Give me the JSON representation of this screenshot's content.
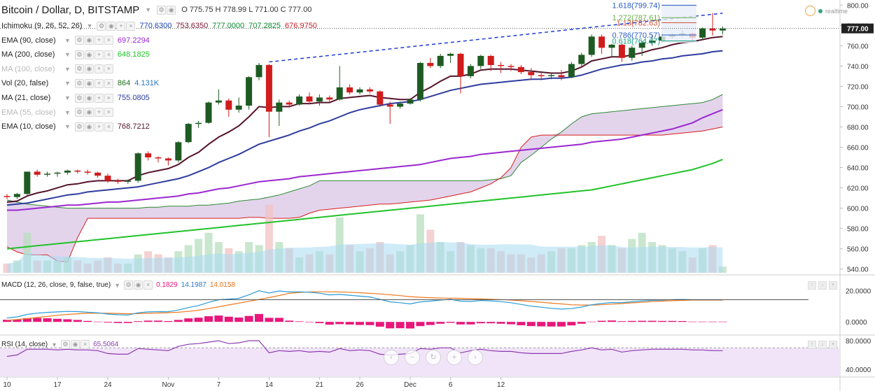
{
  "header": {
    "title": "Bitcoin / Dollar, D, BITSTAMP",
    "ohlc": "O 775.75  H 778.99  L 771.00  C 777.00"
  },
  "indicators": [
    {
      "label": "Ichimoku (9, 26, 52, 26)",
      "values": [
        "770.6300",
        "753.6350",
        "777.0000",
        "707.2825",
        "676.9750"
      ],
      "value_colors": [
        "#1b44b6",
        "#7a1530",
        "#0b8a2f",
        "#0b8a2f",
        "#c8212c"
      ]
    },
    {
      "label": "EMA (90, close)",
      "value": "697.2294",
      "color": "#9c27d0",
      "dim": false
    },
    {
      "label": "MA (200, close)",
      "value": "648.1825",
      "color": "#22c22a",
      "dim": false
    },
    {
      "label": "MA (100, close)",
      "value": "",
      "color": "#b0b0b0",
      "dim": true
    },
    {
      "label": "Vol (20, false)",
      "value": "864",
      "value2": "4.131K",
      "color": "#1e6e1e",
      "color2": "#2a78c8",
      "dim": false
    },
    {
      "label": "MA (21, close)",
      "value": "755.0805",
      "color": "#2e3d9e",
      "dim": false
    },
    {
      "label": "EMA (55, close)",
      "value": "",
      "color": "#b0b0b0",
      "dim": true
    },
    {
      "label": "EMA (10, close)",
      "value": "768.7212",
      "color": "#55142a",
      "dim": false
    }
  ],
  "price_axis": [
    "800.00",
    "780.00",
    "760.00",
    "740.00",
    "720.00",
    "700.00",
    "680.00",
    "660.00",
    "640.00",
    "620.00",
    "600.00",
    "580.00",
    "560.00",
    "540.00"
  ],
  "last_price": "777.00",
  "x_labels": [
    "10",
    "17",
    "24",
    "Nov",
    "7",
    "14",
    "21",
    "26",
    "Dec",
    "6",
    "12"
  ],
  "fib": [
    {
      "label": "1.618(799.74)",
      "color": "#2a5bc2"
    },
    {
      "label": "1.272(787.61)",
      "color": "#6ab04c"
    },
    {
      "label": "1.13(782.63)",
      "color": "#d0533a"
    },
    {
      "label": "0.786(770.57)",
      "color": "#2a5bc2"
    },
    {
      "label": "0.618(764.67)",
      "color": "#16a085"
    }
  ],
  "realtime": "realtime",
  "macd": {
    "label": "MACD (12, 26, close, 9, false, true)",
    "v1": "0.1829",
    "v2": "14.1987",
    "v3": "14.0158",
    "axis": [
      "20.0000",
      "0.0000"
    ]
  },
  "rsi": {
    "label": "RSI (14, close)",
    "value": "65.5064",
    "axis": [
      "80.0000",
      "40.0000"
    ]
  },
  "colors": {
    "up": "#1e5b23",
    "down": "#d01c1c",
    "ema10": "#55142a",
    "ma21": "#2e3d9e",
    "ema90": "#9c27d0",
    "ma200": "#22c22a",
    "kumo": "#d9c6e6",
    "spanA": "#2f8a35",
    "spanB": "#d81c1c",
    "vol": "#a9daf2",
    "macd": "#2a9bd6",
    "signal": "#f07a20",
    "hist": "#e8177a",
    "rsi": "#8e3ab0",
    "trend": "#1e3cd6"
  },
  "chart_data": {
    "type": "line",
    "title": "Bitcoin / Dollar, D, BITSTAMP",
    "ylim": [
      535,
      805
    ],
    "candles": [
      {
        "o": 612,
        "h": 614,
        "l": 609,
        "c": 611
      },
      {
        "o": 611,
        "h": 615,
        "l": 609,
        "c": 614
      },
      {
        "o": 614,
        "h": 636,
        "l": 613,
        "c": 636
      },
      {
        "o": 636,
        "h": 638,
        "l": 631,
        "c": 633
      },
      {
        "o": 633,
        "h": 636,
        "l": 631,
        "c": 634
      },
      {
        "o": 634,
        "h": 636,
        "l": 631,
        "c": 635
      },
      {
        "o": 635,
        "h": 638,
        "l": 633,
        "c": 637
      },
      {
        "o": 637,
        "h": 638,
        "l": 634,
        "c": 636
      },
      {
        "o": 636,
        "h": 638,
        "l": 633,
        "c": 635
      },
      {
        "o": 635,
        "h": 636,
        "l": 630,
        "c": 632
      },
      {
        "o": 632,
        "h": 634,
        "l": 625,
        "c": 627
      },
      {
        "o": 627,
        "h": 629,
        "l": 624,
        "c": 626
      },
      {
        "o": 626,
        "h": 628,
        "l": 624,
        "c": 627
      },
      {
        "o": 627,
        "h": 655,
        "l": 625,
        "c": 654
      },
      {
        "o": 654,
        "h": 656,
        "l": 647,
        "c": 650
      },
      {
        "o": 650,
        "h": 651,
        "l": 645,
        "c": 649
      },
      {
        "o": 649,
        "h": 650,
        "l": 642,
        "c": 647
      },
      {
        "o": 647,
        "h": 666,
        "l": 645,
        "c": 665
      },
      {
        "o": 665,
        "h": 684,
        "l": 664,
        "c": 683
      },
      {
        "o": 683,
        "h": 686,
        "l": 679,
        "c": 684
      },
      {
        "o": 684,
        "h": 705,
        "l": 683,
        "c": 704
      },
      {
        "o": 704,
        "h": 717,
        "l": 702,
        "c": 706
      },
      {
        "o": 706,
        "h": 708,
        "l": 690,
        "c": 697
      },
      {
        "o": 697,
        "h": 709,
        "l": 694,
        "c": 701
      },
      {
        "o": 701,
        "h": 730,
        "l": 697,
        "c": 729
      },
      {
        "o": 729,
        "h": 743,
        "l": 726,
        "c": 741
      },
      {
        "o": 741,
        "h": 742,
        "l": 670,
        "c": 695
      },
      {
        "o": 695,
        "h": 707,
        "l": 681,
        "c": 704
      },
      {
        "o": 704,
        "h": 706,
        "l": 699,
        "c": 702
      },
      {
        "o": 702,
        "h": 712,
        "l": 701,
        "c": 710
      },
      {
        "o": 710,
        "h": 714,
        "l": 702,
        "c": 705
      },
      {
        "o": 705,
        "h": 712,
        "l": 701,
        "c": 709
      },
      {
        "o": 709,
        "h": 711,
        "l": 704,
        "c": 707
      },
      {
        "o": 707,
        "h": 740,
        "l": 706,
        "c": 719
      },
      {
        "o": 719,
        "h": 722,
        "l": 712,
        "c": 714
      },
      {
        "o": 714,
        "h": 719,
        "l": 712,
        "c": 717
      },
      {
        "o": 717,
        "h": 719,
        "l": 713,
        "c": 715
      },
      {
        "o": 715,
        "h": 716,
        "l": 700,
        "c": 702
      },
      {
        "o": 702,
        "h": 705,
        "l": 683,
        "c": 700
      },
      {
        "o": 700,
        "h": 705,
        "l": 698,
        "c": 703
      },
      {
        "o": 703,
        "h": 708,
        "l": 702,
        "c": 707
      },
      {
        "o": 707,
        "h": 744,
        "l": 705,
        "c": 743
      },
      {
        "o": 743,
        "h": 748,
        "l": 738,
        "c": 740
      },
      {
        "o": 740,
        "h": 752,
        "l": 738,
        "c": 750
      },
      {
        "o": 750,
        "h": 753,
        "l": 743,
        "c": 752
      },
      {
        "o": 752,
        "h": 753,
        "l": 713,
        "c": 730
      },
      {
        "o": 730,
        "h": 742,
        "l": 728,
        "c": 740
      },
      {
        "o": 740,
        "h": 751,
        "l": 737,
        "c": 750
      },
      {
        "o": 750,
        "h": 751,
        "l": 735,
        "c": 741
      },
      {
        "o": 741,
        "h": 744,
        "l": 733,
        "c": 740
      },
      {
        "o": 740,
        "h": 742,
        "l": 735,
        "c": 739
      },
      {
        "o": 739,
        "h": 741,
        "l": 732,
        "c": 734
      },
      {
        "o": 734,
        "h": 738,
        "l": 726,
        "c": 731
      },
      {
        "o": 731,
        "h": 734,
        "l": 726,
        "c": 730
      },
      {
        "o": 730,
        "h": 733,
        "l": 727,
        "c": 731
      },
      {
        "o": 731,
        "h": 736,
        "l": 726,
        "c": 729
      },
      {
        "o": 729,
        "h": 744,
        "l": 728,
        "c": 742
      },
      {
        "o": 742,
        "h": 753,
        "l": 740,
        "c": 751
      },
      {
        "o": 751,
        "h": 771,
        "l": 749,
        "c": 769
      },
      {
        "o": 769,
        "h": 771,
        "l": 752,
        "c": 758
      },
      {
        "o": 758,
        "h": 762,
        "l": 749,
        "c": 761
      },
      {
        "o": 761,
        "h": 762,
        "l": 744,
        "c": 748
      },
      {
        "o": 748,
        "h": 760,
        "l": 745,
        "c": 758
      },
      {
        "o": 758,
        "h": 765,
        "l": 750,
        "c": 763
      },
      {
        "o": 763,
        "h": 770,
        "l": 760,
        "c": 765
      },
      {
        "o": 765,
        "h": 772,
        "l": 763,
        "c": 769
      },
      {
        "o": 769,
        "h": 772,
        "l": 767,
        "c": 771
      },
      {
        "o": 771,
        "h": 775,
        "l": 769,
        "c": 772
      },
      {
        "o": 772,
        "h": 773,
        "l": 763,
        "c": 768
      },
      {
        "o": 768,
        "h": 778,
        "l": 766,
        "c": 777
      },
      {
        "o": 777,
        "h": 792,
        "l": 770,
        "c": 775
      },
      {
        "o": 775,
        "h": 779,
        "l": 771,
        "c": 777
      }
    ],
    "volume": [
      3,
      4,
      13,
      4,
      4,
      4,
      5,
      4,
      3,
      4,
      5,
      3,
      3,
      6,
      7,
      6,
      5,
      7,
      9,
      11,
      13,
      10,
      8,
      7,
      10,
      9,
      22,
      10,
      8,
      5,
      6,
      7,
      6,
      18,
      9,
      7,
      8,
      10,
      6,
      7,
      9,
      19,
      14,
      10,
      7,
      10,
      9,
      8,
      8,
      7,
      6,
      6,
      5,
      6,
      7,
      8,
      8,
      9,
      10,
      12,
      9,
      8,
      11,
      13,
      10,
      9,
      8,
      7,
      5,
      8,
      9,
      2
    ],
    "ema10": [
      606,
      607,
      612,
      615,
      617,
      620,
      623,
      624,
      626,
      627,
      627,
      627,
      627,
      632,
      635,
      637,
      639,
      643,
      650,
      655,
      663,
      670,
      675,
      681,
      690,
      700,
      699,
      700,
      700,
      703,
      703,
      704,
      704,
      708,
      709,
      710,
      711,
      709,
      708,
      707,
      707,
      714,
      719,
      725,
      730,
      730,
      732,
      736,
      737,
      737,
      737,
      736,
      735,
      734,
      733,
      733,
      735,
      739,
      745,
      747,
      749,
      749,
      751,
      753,
      756,
      758,
      761,
      763,
      764,
      766,
      768,
      769
    ],
    "ma21": [
      603,
      604,
      605,
      607,
      609,
      611,
      613,
      614,
      616,
      617,
      618,
      619,
      620,
      621,
      623,
      625,
      627,
      629,
      632,
      636,
      640,
      645,
      649,
      653,
      658,
      663,
      666,
      669,
      672,
      676,
      679,
      683,
      686,
      690,
      694,
      697,
      699,
      701,
      703,
      704,
      705,
      707,
      710,
      713,
      716,
      718,
      720,
      722,
      723,
      724,
      725,
      726,
      727,
      727,
      728,
      728,
      729,
      731,
      734,
      737,
      739,
      741,
      742,
      744,
      745,
      747,
      748,
      750,
      751,
      752,
      754,
      755
    ],
    "ema90": [
      598,
      598,
      599,
      600,
      601,
      602,
      603,
      603,
      604,
      605,
      606,
      606,
      607,
      608,
      609,
      610,
      611,
      612,
      614,
      615,
      617,
      619,
      620,
      622,
      624,
      626,
      627,
      628,
      629,
      631,
      632,
      633,
      634,
      635,
      636,
      637,
      638,
      639,
      640,
      641,
      642,
      643,
      645,
      647,
      649,
      650,
      651,
      653,
      654,
      655,
      656,
      657,
      658,
      659,
      660,
      661,
      662,
      663,
      665,
      666,
      667,
      668,
      670,
      672,
      674,
      676,
      678,
      681,
      684,
      689,
      693,
      697
    ],
    "ma200": [
      560,
      561,
      562,
      563,
      564,
      565,
      566,
      567,
      568,
      569,
      570,
      571,
      572,
      573,
      574,
      575,
      576,
      577,
      578,
      579,
      580,
      581,
      582,
      583,
      584,
      585,
      586,
      587,
      588,
      589,
      590,
      591,
      592,
      593,
      594,
      595,
      596,
      597,
      598,
      599,
      600,
      601,
      602,
      603,
      604,
      605,
      606,
      607,
      608,
      609,
      610,
      611,
      612,
      613,
      614,
      615,
      616,
      617,
      618,
      620,
      622,
      624,
      626,
      628,
      630,
      632,
      634,
      636,
      638,
      641,
      644,
      648
    ],
    "span_a": [
      608,
      606,
      604,
      603,
      602,
      601,
      600,
      600,
      600,
      600,
      600,
      600,
      600,
      600,
      601,
      601,
      602,
      602,
      602,
      603,
      603,
      604,
      605,
      607,
      608,
      609,
      611,
      613,
      616,
      619,
      622,
      627,
      627,
      627,
      627,
      627,
      627,
      627,
      627,
      627,
      627,
      627,
      627,
      627,
      627,
      627,
      627,
      627,
      628,
      629,
      632,
      645,
      652,
      660,
      668,
      675,
      683,
      690,
      693,
      694,
      695,
      696,
      697,
      698,
      699,
      700,
      701,
      702,
      703,
      704,
      707,
      712
    ],
    "span_b": [
      562,
      557,
      554,
      554,
      554,
      548,
      547,
      571,
      590,
      590,
      590,
      590,
      590,
      590,
      590,
      590,
      590,
      590,
      590,
      590,
      590,
      590,
      590,
      590,
      591,
      591,
      590,
      590,
      590,
      591,
      595,
      598,
      599,
      600,
      601,
      602,
      603,
      604,
      604,
      605,
      606,
      607,
      608,
      610,
      612,
      614,
      616,
      620,
      624,
      630,
      640,
      660,
      670,
      672,
      672,
      672,
      672,
      672,
      672,
      672,
      672,
      672,
      672,
      672,
      672,
      672,
      673,
      674,
      675,
      676,
      678,
      680
    ],
    "macd": [
      2.5,
      3.2,
      4.8,
      5.6,
      6.1,
      6.4,
      6.7,
      6.6,
      6.2,
      5.8,
      5.0,
      4.6,
      4.4,
      5.8,
      6.4,
      6.6,
      6.5,
      7.6,
      9.2,
      10.5,
      12.5,
      14.2,
      14.6,
      15.1,
      17.4,
      20.0,
      18.5,
      19.8,
      19.2,
      19.3,
      19.0,
      18.4,
      17.3,
      17.6,
      17.1,
      16.5,
      16.0,
      14.5,
      12.8,
      12.3,
      11.5,
      12.8,
      13.3,
      14.0,
      14.5,
      13.3,
      13.1,
      13.7,
      13.5,
      13.0,
      12.3,
      11.2,
      10.1,
      9.4,
      8.7,
      8.2,
      8.5,
      9.5,
      11.0,
      11.8,
      12.4,
      12.3,
      12.9,
      13.4,
      13.8,
      14.0,
      14.3,
      14.4,
      14.2,
      14.2,
      14.2,
      14.2
    ],
    "signal": [
      1.0,
      1.5,
      2.1,
      2.8,
      3.5,
      4.2,
      4.8,
      5.2,
      5.5,
      5.6,
      5.5,
      5.4,
      5.2,
      5.3,
      5.5,
      5.7,
      5.9,
      6.2,
      6.7,
      7.5,
      8.5,
      9.7,
      10.9,
      12.0,
      13.2,
      14.4,
      15.6,
      16.9,
      18.3,
      18.9,
      19.2,
      19.3,
      19.3,
      19.2,
      19.0,
      18.7,
      18.3,
      17.9,
      17.4,
      16.8,
      16.2,
      15.8,
      15.5,
      15.3,
      15.2,
      15.1,
      14.9,
      14.7,
      14.5,
      14.3,
      14.0,
      13.6,
      13.1,
      12.6,
      12.0,
      11.5,
      11.0,
      10.8,
      10.8,
      11.0,
      11.4,
      11.8,
      12.2,
      12.6,
      13.0,
      13.3,
      13.6,
      13.8,
      14.0,
      14.0,
      14.0,
      14.0
    ],
    "rsi": [
      58,
      60,
      68,
      68,
      68,
      67,
      68,
      67,
      67,
      66,
      62,
      61,
      61,
      69,
      68,
      67,
      66,
      72,
      75,
      76,
      78,
      80,
      76,
      77,
      80,
      80,
      63,
      66,
      65,
      66,
      64,
      65,
      64,
      69,
      66,
      67,
      66,
      61,
      60,
      61,
      62,
      69,
      68,
      70,
      70,
      63,
      66,
      68,
      66,
      65,
      65,
      63,
      62,
      62,
      62,
      62,
      65,
      67,
      70,
      67,
      68,
      64,
      66,
      67,
      68,
      68,
      68,
      68,
      67,
      67,
      66,
      66
    ]
  }
}
